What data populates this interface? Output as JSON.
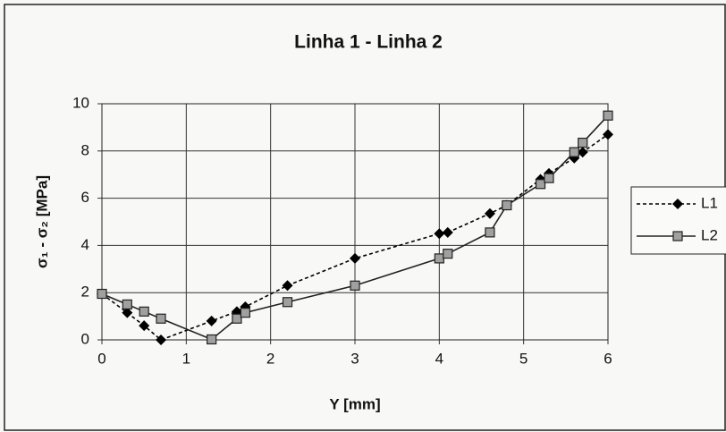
{
  "chart_data": {
    "type": "line",
    "title": "Linha 1 - Linha  2",
    "xlabel": "Y [mm]",
    "ylabel": "σ₁ - σ₂ [MPa]",
    "x": [
      0,
      0.3,
      0.5,
      0.7,
      1.3,
      1.6,
      1.7,
      2.2,
      3,
      4,
      4.1,
      4.6,
      4.8,
      5.2,
      5.3,
      5.6,
      5.7,
      6
    ],
    "series": [
      {
        "name": "L1",
        "color": "#000000",
        "marker": "diamond",
        "dash": true,
        "values": [
          1.95,
          1.15,
          0.6,
          0.0,
          0.8,
          1.2,
          1.4,
          2.3,
          3.45,
          4.5,
          4.55,
          5.35,
          5.7,
          6.8,
          7.05,
          7.7,
          7.95,
          8.7
        ]
      },
      {
        "name": "L2",
        "color": "#222222",
        "marker": "square",
        "dash": false,
        "values": [
          1.95,
          1.5,
          1.2,
          0.9,
          0.02,
          0.9,
          1.15,
          1.6,
          2.3,
          3.45,
          3.65,
          4.55,
          5.7,
          6.6,
          6.85,
          7.95,
          8.35,
          9.5
        ]
      }
    ],
    "xlim": [
      0,
      6
    ],
    "xticks": [
      0,
      1,
      2,
      3,
      4,
      5,
      6
    ],
    "ylim": [
      0,
      10
    ],
    "yticks": [
      0,
      2,
      4,
      6,
      8,
      10
    ],
    "grid": true,
    "legend": "right"
  }
}
